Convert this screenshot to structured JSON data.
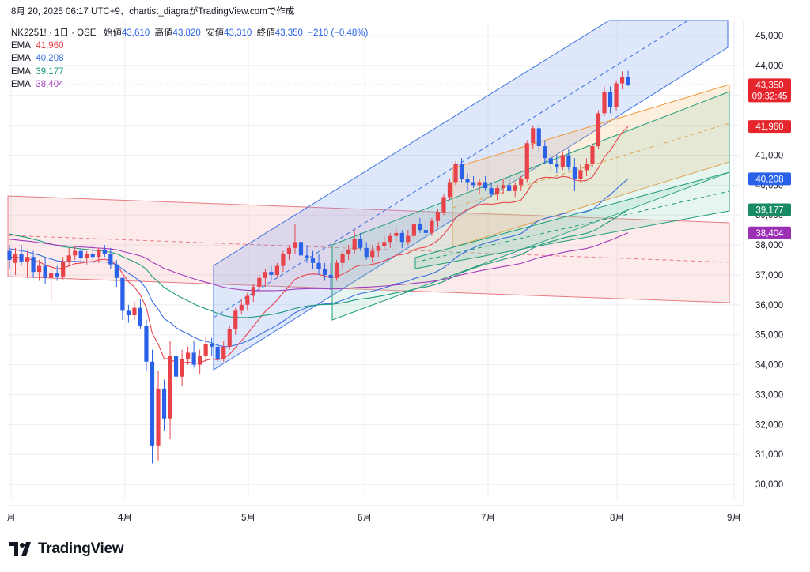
{
  "header": {
    "snapshot_text": "8月 20, 2025 06:17 UTC+9、chartist_diagraがTradingView.comで作成"
  },
  "legend": {
    "symbol": "NK2251! · 1日 · OSE",
    "open_label": "始値",
    "open": "43,610",
    "high_label": "高値",
    "high": "43,820",
    "low_label": "安値",
    "low": "43,310",
    "close_label": "終値",
    "close": "43,350",
    "change": "−210 (−0.48%)",
    "ema": [
      {
        "label": "EMA",
        "value": "41,960",
        "color": "#e8434b"
      },
      {
        "label": "EMA",
        "value": "40,208",
        "color": "#3a6fe0"
      },
      {
        "label": "EMA",
        "value": "39,177",
        "color": "#1e9c7c"
      },
      {
        "label": "EMA",
        "value": "38,404",
        "color": "#a33dbd"
      }
    ]
  },
  "price_tags": [
    {
      "value": "43,350",
      "sub": "09:32:45",
      "price": 43350,
      "color": "#e5242b"
    },
    {
      "value": "41,960",
      "price": 41960,
      "color": "#e5242b"
    },
    {
      "value": "40,208",
      "price": 40208,
      "color": "#2962e8"
    },
    {
      "value": "39,177",
      "price": 39177,
      "color": "#1a8a66"
    },
    {
      "value": "38,404",
      "price": 38404,
      "color": "#9b30b5"
    }
  ],
  "brand": {
    "name": "TradingView"
  },
  "colors": {
    "up": "#e8434b",
    "down": "#2962e8",
    "grid": "#eceef2"
  },
  "chart_data": {
    "type": "candlestick",
    "y_axis": {
      "min": 29500,
      "max": 45500,
      "ticks": [
        30000,
        31000,
        32000,
        33000,
        34000,
        35000,
        36000,
        37000,
        38000,
        39000,
        40000,
        41000,
        42000,
        43000,
        44000,
        45000
      ],
      "tick_labels": [
        "30,000",
        "31,000",
        "32,000",
        "33,000",
        "34,000",
        "35,000",
        "36,000",
        "37,000",
        "38,000",
        "39,000",
        "40,000",
        "41,000",
        "42,000",
        "43,000",
        "44,000",
        "45,000"
      ]
    },
    "x_axis": {
      "labels": [
        "月",
        "4月",
        "5月",
        "6月",
        "7月",
        "8月",
        "9月"
      ]
    },
    "candles_note": "daily OHLC, approximate, March 10 – August 20, 2025",
    "candles": [
      [
        37800,
        38000,
        37200,
        37500
      ],
      [
        37400,
        37900,
        37000,
        37700
      ],
      [
        37700,
        38000,
        37300,
        37450
      ],
      [
        37450,
        37800,
        36900,
        37600
      ],
      [
        37600,
        37800,
        36900,
        37100
      ],
      [
        37100,
        37500,
        36800,
        37300
      ],
      [
        37300,
        37600,
        36700,
        36900
      ],
      [
        36900,
        37300,
        36100,
        37050
      ],
      [
        37050,
        37300,
        36800,
        36950
      ],
      [
        36950,
        37600,
        36850,
        37450
      ],
      [
        37450,
        37900,
        37300,
        37650
      ],
      [
        37650,
        37950,
        37500,
        37800
      ],
      [
        37800,
        37900,
        37400,
        37550
      ],
      [
        37550,
        37800,
        37350,
        37700
      ],
      [
        37700,
        38000,
        37500,
        37600
      ],
      [
        37600,
        37900,
        37400,
        37850
      ],
      [
        37850,
        38000,
        37600,
        37700
      ],
      [
        37700,
        37900,
        37200,
        37350
      ],
      [
        37350,
        37500,
        36600,
        36900
      ],
      [
        36900,
        36900,
        35500,
        35800
      ],
      [
        35800,
        36000,
        35400,
        35650
      ],
      [
        35650,
        36100,
        35500,
        35900
      ],
      [
        35900,
        36200,
        35200,
        35300
      ],
      [
        35300,
        35500,
        33800,
        34100
      ],
      [
        34100,
        34500,
        30700,
        31300
      ],
      [
        31300,
        33800,
        30800,
        33200
      ],
      [
        33200,
        33500,
        31800,
        32200
      ],
      [
        32200,
        34800,
        31500,
        34300
      ],
      [
        34300,
        34800,
        33100,
        33600
      ],
      [
        33600,
        34500,
        33300,
        34200
      ],
      [
        34200,
        34600,
        34000,
        34400
      ],
      [
        34400,
        34800,
        33900,
        34000
      ],
      [
        34000,
        34500,
        33700,
        34300
      ],
      [
        34300,
        34900,
        34100,
        34700
      ],
      [
        34700,
        34900,
        34300,
        34600
      ],
      [
        34600,
        34700,
        34100,
        34200
      ],
      [
        34200,
        34800,
        34100,
        34600
      ],
      [
        34600,
        35300,
        34500,
        35200
      ],
      [
        35200,
        35900,
        35000,
        35800
      ],
      [
        35800,
        36200,
        35700,
        36000
      ],
      [
        36000,
        36400,
        35800,
        36300
      ],
      [
        36300,
        36700,
        36100,
        36600
      ],
      [
        36600,
        37000,
        36400,
        36900
      ],
      [
        36900,
        37200,
        36600,
        37100
      ],
      [
        37100,
        37300,
        36800,
        37000
      ],
      [
        37000,
        37400,
        36900,
        37300
      ],
      [
        37300,
        37800,
        37100,
        37700
      ],
      [
        37700,
        38000,
        37500,
        37900
      ],
      [
        37900,
        38700,
        37700,
        38100
      ],
      [
        38100,
        38200,
        37500,
        37650
      ],
      [
        37650,
        38000,
        37400,
        37550
      ],
      [
        37550,
        37800,
        37200,
        37400
      ],
      [
        37400,
        37700,
        37000,
        37200
      ],
      [
        37200,
        37400,
        36800,
        37000
      ],
      [
        37000,
        37400,
        36500,
        36900
      ],
      [
        36900,
        37500,
        36800,
        37400
      ],
      [
        37400,
        37800,
        37200,
        37700
      ],
      [
        37700,
        38000,
        37500,
        37850
      ],
      [
        37850,
        38500,
        37700,
        38200
      ],
      [
        38200,
        38400,
        37800,
        37900
      ],
      [
        37900,
        38100,
        37500,
        37600
      ],
      [
        37600,
        38000,
        37400,
        37800
      ],
      [
        37800,
        38100,
        37600,
        37950
      ],
      [
        37950,
        38300,
        37800,
        38100
      ],
      [
        38100,
        38400,
        37900,
        38300
      ],
      [
        38300,
        38600,
        38100,
        38400
      ],
      [
        38400,
        38500,
        37900,
        38100
      ],
      [
        38100,
        38500,
        38000,
        38300
      ],
      [
        38300,
        38800,
        38200,
        38700
      ],
      [
        38700,
        38900,
        38400,
        38500
      ],
      [
        38500,
        38800,
        38300,
        38400
      ],
      [
        38400,
        38900,
        38300,
        38800
      ],
      [
        38800,
        39200,
        38600,
        39100
      ],
      [
        39100,
        39700,
        39000,
        39600
      ],
      [
        39600,
        40200,
        39500,
        40100
      ],
      [
        40100,
        40800,
        40000,
        40700
      ],
      [
        40700,
        40900,
        40100,
        40200
      ],
      [
        40200,
        40400,
        39800,
        40100
      ],
      [
        40100,
        40300,
        39900,
        40000
      ],
      [
        40000,
        40200,
        39700,
        40100
      ],
      [
        40100,
        40300,
        39800,
        39900
      ],
      [
        39900,
        40100,
        39600,
        39700
      ],
      [
        39700,
        40000,
        39500,
        39900
      ],
      [
        39900,
        40200,
        39700,
        40000
      ],
      [
        40000,
        40300,
        39800,
        39800
      ],
      [
        39800,
        40100,
        39600,
        40000
      ],
      [
        40000,
        40300,
        39800,
        40200
      ],
      [
        40200,
        41500,
        40100,
        41400
      ],
      [
        41400,
        42000,
        41200,
        41900
      ],
      [
        41900,
        42000,
        41100,
        41300
      ],
      [
        41300,
        41500,
        40700,
        40900
      ],
      [
        40900,
        41000,
        40500,
        40700
      ],
      [
        40700,
        41000,
        40400,
        40600
      ],
      [
        40600,
        41100,
        40500,
        41000
      ],
      [
        41000,
        41200,
        40500,
        40600
      ],
      [
        40600,
        40900,
        39800,
        40200
      ],
      [
        40200,
        40700,
        40100,
        40500
      ],
      [
        40500,
        40900,
        40300,
        40700
      ],
      [
        40700,
        41400,
        40600,
        41300
      ],
      [
        41300,
        42500,
        41200,
        42400
      ],
      [
        42400,
        43300,
        42300,
        43100
      ],
      [
        43100,
        43300,
        42400,
        42600
      ],
      [
        42600,
        43500,
        42500,
        43400
      ],
      [
        43400,
        43800,
        43200,
        43600
      ],
      [
        43610,
        43820,
        43310,
        43350
      ]
    ],
    "ema_series": [
      {
        "value_label": "41,960",
        "last": 41960
      },
      {
        "value_label": "40,208",
        "last": 40208
      },
      {
        "value_label": "39,177",
        "last": 39177
      },
      {
        "value_label": "38,404",
        "last": 38404
      }
    ]
  }
}
